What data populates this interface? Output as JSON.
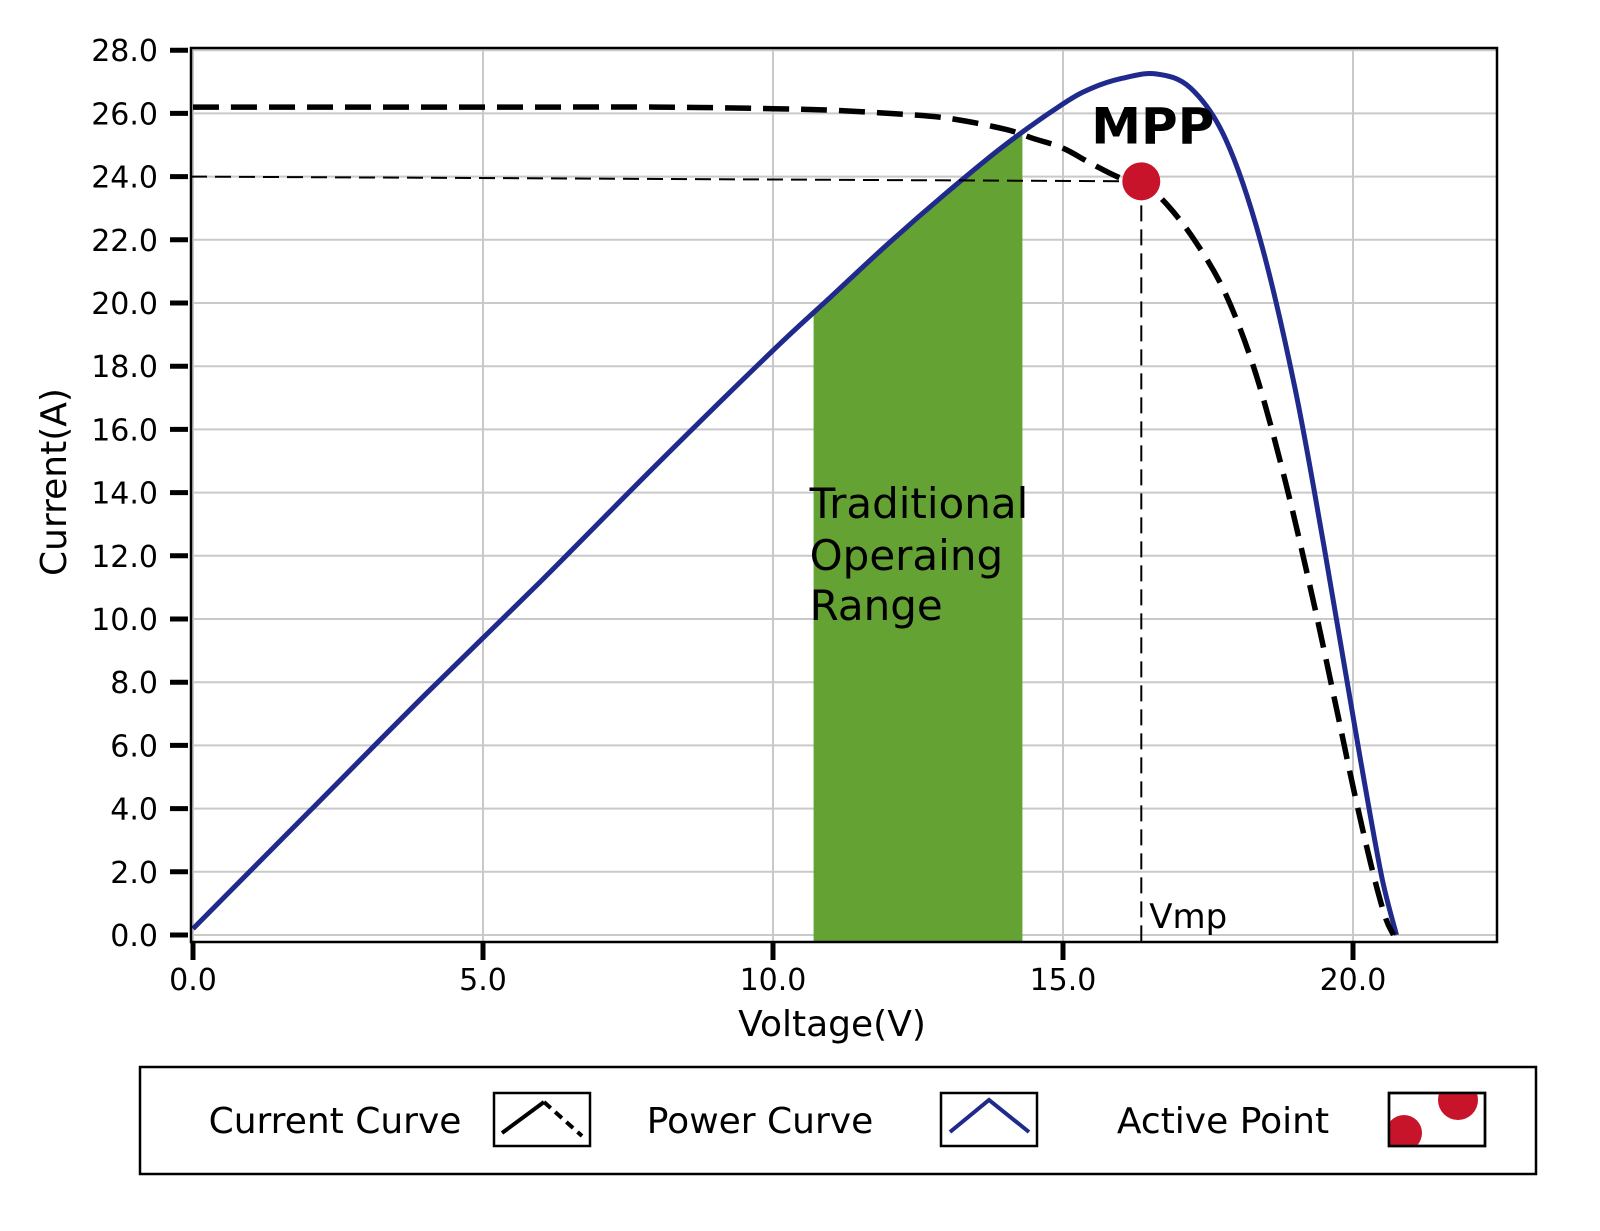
{
  "chart_data": {
    "type": "line",
    "xlabel": "Voltage(V)",
    "ylabel": "Current(A)",
    "xlim": [
      0,
      22.6
    ],
    "ylim": [
      0,
      28
    ],
    "x_ticks": [
      0,
      5,
      10,
      15,
      20
    ],
    "x_tick_labels": [
      "0.0",
      "5.0",
      "10.0",
      "15.0",
      "20.0"
    ],
    "y_ticks": [
      0,
      2,
      4,
      6,
      8,
      10,
      12,
      14,
      16,
      18,
      20,
      22,
      24,
      26,
      28
    ],
    "y_tick_labels": [
      "0.0",
      "2.0",
      "4.0",
      "6.0",
      "8.0",
      "10.0",
      "12.0",
      "14.0",
      "16.0",
      "18.0",
      "20.0",
      "22.0",
      "24.0",
      "26.0",
      "28.0"
    ],
    "grid": true,
    "series": [
      {
        "name": "Current Curve",
        "style": "dashed",
        "color": "#000000",
        "x": [
          0,
          2,
          4,
          6,
          8,
          10,
          11,
          12,
          13,
          14,
          14.5,
          15,
          15.5,
          16,
          16.35,
          16.8,
          17.3,
          17.8,
          18.3,
          18.8,
          19.3,
          19.7,
          20.0,
          20.3,
          20.55,
          20.7
        ],
        "y": [
          26.2,
          26.2,
          26.2,
          26.2,
          26.2,
          26.15,
          26.1,
          26.0,
          25.85,
          25.5,
          25.2,
          24.9,
          24.4,
          23.95,
          23.85,
          23.1,
          21.9,
          20.3,
          17.9,
          14.6,
          10.7,
          7.3,
          4.7,
          2.3,
          0.6,
          0
        ]
      },
      {
        "name": "Power Curve",
        "style": "solid",
        "color": "#1f2a8c",
        "x": [
          0,
          2,
          4,
          6,
          8,
          10,
          11,
          12,
          13,
          14,
          15,
          15.5,
          16,
          16.6,
          17.2,
          17.8,
          18.4,
          19.0,
          19.5,
          19.9,
          20.2,
          20.5,
          20.75
        ],
        "y": [
          0.2,
          3.9,
          7.6,
          11.2,
          14.9,
          18.5,
          20.2,
          21.9,
          23.5,
          25.0,
          26.3,
          26.8,
          27.1,
          27.25,
          26.8,
          25.2,
          22.0,
          17.3,
          12.3,
          8.0,
          4.8,
          1.8,
          0
        ]
      }
    ],
    "shaded_region": {
      "x_start": 10.7,
      "x_end": 14.3,
      "color": "#63a233",
      "label": [
        "Traditional",
        "Operaing",
        "Range"
      ]
    },
    "mpp": {
      "label": "MPP",
      "x": 16.35,
      "y": 23.85,
      "color": "#c8142a",
      "vline_label": "Vmp"
    },
    "legend": {
      "placement": "bottom",
      "items": [
        {
          "label": "Current Curve",
          "icon": "dashed-line-icon"
        },
        {
          "label": "Power Curve",
          "icon": "solid-line-icon"
        },
        {
          "label": "Active Point",
          "icon": "red-dots-icon"
        }
      ]
    }
  }
}
